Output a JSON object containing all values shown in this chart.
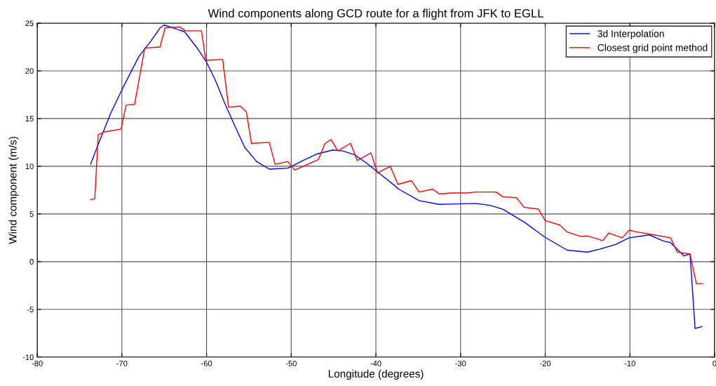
{
  "chart_data": {
    "type": "line",
    "title": "Wind components along GCD route for a flight from JFK to EGLL",
    "xlabel": "Longitude (degrees)",
    "ylabel": "Wind component (m/s)",
    "xlim": [
      -80,
      0
    ],
    "xticks": [
      -80,
      -70,
      -60,
      -50,
      -40,
      -30,
      -20,
      -10,
      0
    ],
    "ylim": [
      -10,
      25
    ],
    "yticks": [
      -10,
      -5,
      0,
      5,
      10,
      15,
      20,
      25
    ],
    "grid": true,
    "legend": "top right",
    "series": [
      {
        "name": "3d Interpolation",
        "color": "#0000ff",
        "x": [
          -73.7,
          -72.8,
          -71.3,
          -69.9,
          -68.0,
          -66.6,
          -65.5,
          -65.0,
          -62.6,
          -61.2,
          -60.0,
          -59.0,
          -57.9,
          -56.8,
          -55.5,
          -54.1,
          -52.6,
          -50.4,
          -48.6,
          -46.9,
          -45.1,
          -43.9,
          -42.5,
          -41.2,
          -39.8,
          -38.1,
          -37.3,
          -34.9,
          -32.5,
          -30.7,
          -28.2,
          -26.5,
          -25.0,
          -22.4,
          -20.1,
          -17.4,
          -15.0,
          -13.6,
          -11.7,
          -10.1,
          -7.7,
          -6.0,
          -5.2,
          -3.6,
          -2.9,
          -2.3,
          -1.5
        ],
        "values": [
          10.2,
          12.3,
          15.6,
          18.2,
          21.5,
          23.1,
          24.5,
          24.8,
          24.1,
          22.5,
          20.9,
          19.1,
          16.7,
          14.5,
          12.0,
          10.5,
          9.7,
          9.8,
          10.6,
          11.3,
          11.7,
          11.6,
          11.2,
          10.4,
          9.4,
          8.2,
          7.6,
          6.4,
          6.0,
          6.05,
          6.1,
          5.9,
          5.5,
          4.1,
          2.6,
          1.2,
          1.0,
          1.3,
          1.8,
          2.5,
          2.8,
          2.15,
          2.0,
          0.6,
          0.8,
          -7.0,
          -6.8
        ]
      },
      {
        "name": "Closest grid point method",
        "color": "#ff0000",
        "x": [
          -73.7,
          -73.2,
          -72.8,
          -72.1,
          -70.1,
          -69.5,
          -68.5,
          -67.3,
          -65.5,
          -64.9,
          -63.2,
          -62.5,
          -60.6,
          -60.1,
          -58.1,
          -57.4,
          -56.0,
          -55.3,
          -54.7,
          -52.6,
          -51.9,
          -50.4,
          -49.6,
          -46.8,
          -46.0,
          -45.3,
          -44.5,
          -43.0,
          -42.2,
          -40.6,
          -39.8,
          -38.3,
          -37.4,
          -35.8,
          -34.9,
          -33.3,
          -32.5,
          -31.0,
          -29.3,
          -28.2,
          -25.8,
          -25.0,
          -23.4,
          -22.5,
          -20.8,
          -20.0,
          -18.3,
          -17.4,
          -15.8,
          -15.0,
          -13.2,
          -12.5,
          -10.9,
          -10.1,
          -9.1,
          -7.1,
          -5.2,
          -4.4,
          -2.9,
          -2.15,
          -1.4
        ],
        "values": [
          6.5,
          6.6,
          13.3,
          13.6,
          13.9,
          16.4,
          16.5,
          22.4,
          22.5,
          24.5,
          24.6,
          24.2,
          24.2,
          21.1,
          21.2,
          16.2,
          16.3,
          15.7,
          12.4,
          12.5,
          10.2,
          10.5,
          9.6,
          10.7,
          12.4,
          12.8,
          11.6,
          12.4,
          10.6,
          11.4,
          9.3,
          10.0,
          8.1,
          8.5,
          7.3,
          7.6,
          7.1,
          7.2,
          7.2,
          7.3,
          7.3,
          6.8,
          6.7,
          5.7,
          5.5,
          4.3,
          3.85,
          3.1,
          2.65,
          2.7,
          2.2,
          3.0,
          2.5,
          3.3,
          3.1,
          2.8,
          2.5,
          1.0,
          0.8,
          -2.3,
          -2.3
        ]
      }
    ]
  }
}
